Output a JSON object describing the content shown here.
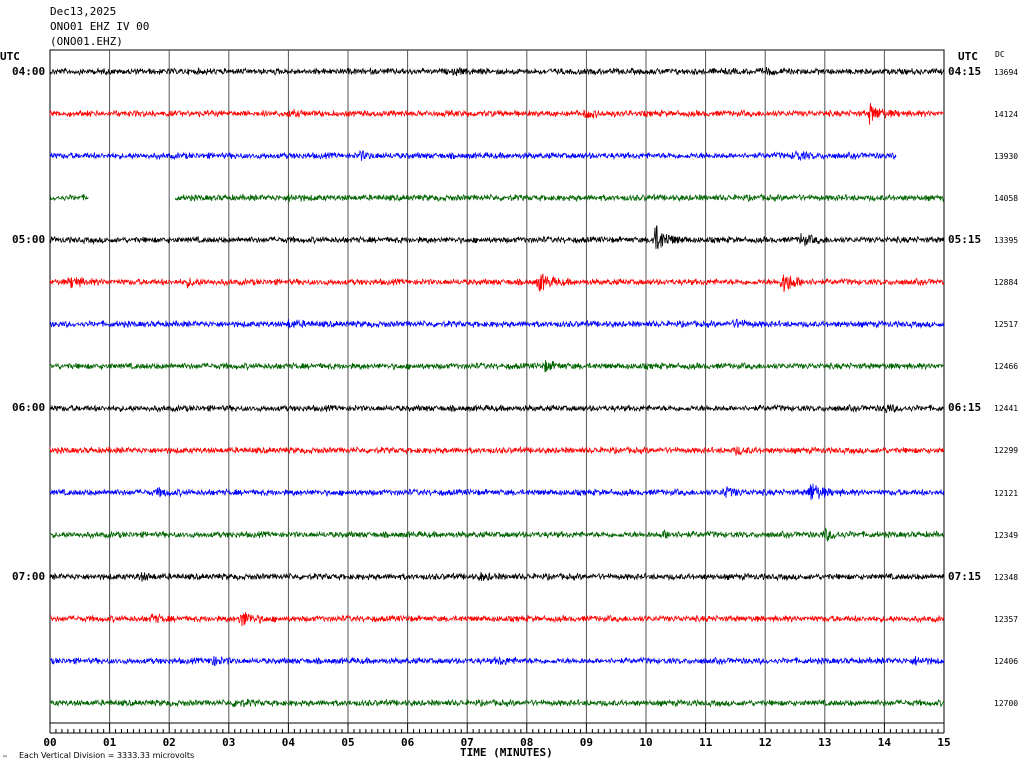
{
  "header": {
    "date": "Dec13,2025",
    "station": "ONO01 EHZ IV 00",
    "code": "(ONO01.EHZ)"
  },
  "utc_left": "UTC",
  "utc_right": "UTC",
  "dc_label": "DC",
  "footer_note": "Each Vertical Division = 3333.33 microvolts",
  "logo_text": "™",
  "colors": [
    "#000000",
    "#ff0000",
    "#0000ff",
    "#006400"
  ],
  "chart_data": {
    "type": "line",
    "title": "",
    "xlabel": "TIME (MINUTES)",
    "xlim": [
      0,
      15
    ],
    "x_ticks": [
      "00",
      "01",
      "02",
      "03",
      "04",
      "05",
      "06",
      "07",
      "08",
      "09",
      "10",
      "11",
      "12",
      "13",
      "14",
      "15"
    ],
    "left_time_labels": [
      {
        "row": 0,
        "text": "04:00"
      },
      {
        "row": 4,
        "text": "05:00"
      },
      {
        "row": 8,
        "text": "06:00"
      },
      {
        "row": 12,
        "text": "07:00"
      }
    ],
    "right_time_labels": [
      {
        "row": 0,
        "text": "04:15"
      },
      {
        "row": 4,
        "text": "05:15"
      },
      {
        "row": 8,
        "text": "06:15"
      },
      {
        "row": 12,
        "text": "07:15"
      }
    ],
    "grid": true,
    "traces": [
      {
        "row": 0,
        "dc": "13694",
        "start": 0,
        "end": 15,
        "amp": 3,
        "gaps": [],
        "events": [
          [
            6.8,
            2
          ],
          [
            12.0,
            2
          ]
        ]
      },
      {
        "row": 1,
        "dc": "14124",
        "start": 0,
        "end": 15,
        "amp": 3,
        "gaps": [],
        "events": [
          [
            13.75,
            9
          ],
          [
            9.0,
            3
          ],
          [
            4.0,
            2
          ]
        ]
      },
      {
        "row": 2,
        "dc": "13930",
        "start": 0,
        "end": 14.2,
        "amp": 3,
        "gaps": [],
        "events": [
          [
            5.2,
            3
          ],
          [
            12.5,
            4
          ]
        ]
      },
      {
        "row": 3,
        "dc": "14058",
        "start": 0,
        "end": 15,
        "amp": 3,
        "gaps": [
          [
            0.65,
            2.1
          ]
        ],
        "events": [
          [
            4.0,
            2
          ]
        ]
      },
      {
        "row": 4,
        "dc": "13395",
        "start": 0,
        "end": 15,
        "amp": 3,
        "gaps": [],
        "events": [
          [
            10.15,
            14
          ],
          [
            12.6,
            5
          ]
        ]
      },
      {
        "row": 5,
        "dc": "12884",
        "start": 0,
        "end": 15,
        "amp": 3,
        "gaps": [],
        "events": [
          [
            0.35,
            5
          ],
          [
            8.2,
            9
          ],
          [
            12.3,
            11
          ],
          [
            2.3,
            3
          ]
        ]
      },
      {
        "row": 6,
        "dc": "12517",
        "start": 0,
        "end": 15,
        "amp": 3,
        "gaps": [],
        "events": [
          [
            4.0,
            3
          ],
          [
            11.5,
            3
          ]
        ]
      },
      {
        "row": 7,
        "dc": "12466",
        "start": 0,
        "end": 15,
        "amp": 3,
        "gaps": [],
        "events": [
          [
            8.3,
            4
          ]
        ]
      },
      {
        "row": 8,
        "dc": "12441",
        "start": 0,
        "end": 15,
        "amp": 3,
        "gaps": [],
        "events": [
          [
            14.0,
            3
          ]
        ]
      },
      {
        "row": 9,
        "dc": "12299",
        "start": 0,
        "end": 15,
        "amp": 3,
        "gaps": [],
        "events": [
          [
            11.5,
            3
          ]
        ]
      },
      {
        "row": 10,
        "dc": "12121",
        "start": 0,
        "end": 15,
        "amp": 3,
        "gaps": [],
        "events": [
          [
            11.3,
            5
          ],
          [
            12.75,
            10
          ],
          [
            1.8,
            3
          ]
        ]
      },
      {
        "row": 11,
        "dc": "12349",
        "start": 0,
        "end": 15,
        "amp": 3,
        "gaps": [],
        "events": [
          [
            13.0,
            5
          ],
          [
            10.3,
            3
          ]
        ]
      },
      {
        "row": 12,
        "dc": "12348",
        "start": 0,
        "end": 15,
        "amp": 3,
        "gaps": [],
        "events": [
          [
            7.2,
            3
          ],
          [
            1.5,
            3
          ]
        ]
      },
      {
        "row": 13,
        "dc": "12357",
        "start": 0,
        "end": 15,
        "amp": 3,
        "gaps": [],
        "events": [
          [
            3.2,
            8
          ],
          [
            1.7,
            3
          ]
        ]
      },
      {
        "row": 14,
        "dc": "12406",
        "start": 0,
        "end": 15,
        "amp": 3,
        "gaps": [],
        "events": [
          [
            2.7,
            4
          ],
          [
            7.5,
            3
          ],
          [
            14.5,
            3
          ]
        ]
      },
      {
        "row": 15,
        "dc": "12700",
        "start": 0,
        "end": 15,
        "amp": 3,
        "gaps": [],
        "events": [
          [
            3.1,
            3
          ]
        ]
      }
    ]
  }
}
